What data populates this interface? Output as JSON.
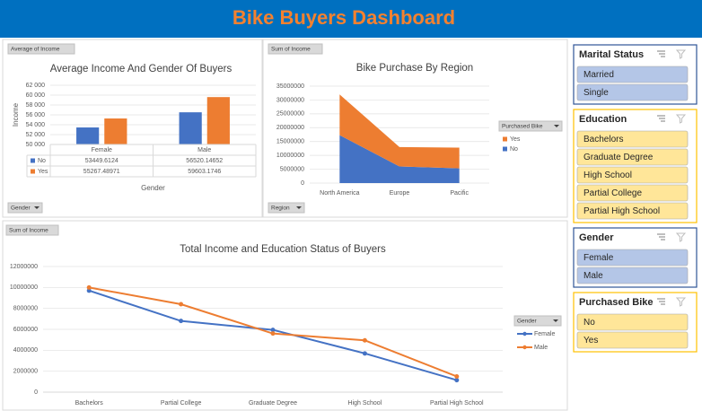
{
  "header": {
    "title": "Bike Buyers Dashboard"
  },
  "chart_data": [
    {
      "type": "bar",
      "title": "Average Income And Gender Of Buyers",
      "field_button": "Average of Income",
      "axis_button": "Gender",
      "y_label": "Income",
      "x_label": "Gender",
      "categories": [
        "Female",
        "Male"
      ],
      "series": [
        {
          "name": "No",
          "color": "#4472c4",
          "values": [
            53449.6124,
            56520.14652
          ]
        },
        {
          "name": "Yes",
          "color": "#ed7d31",
          "values": [
            55267.48971,
            59603.1746
          ]
        }
      ],
      "ylim": [
        50000,
        62000
      ],
      "yticks": [
        {
          "value": 50000,
          "label": "50 000"
        },
        {
          "value": 52000,
          "label": "52 000"
        },
        {
          "value": 54000,
          "label": "54 000"
        },
        {
          "value": 56000,
          "label": "56 000"
        },
        {
          "value": 58000,
          "label": "58 000"
        },
        {
          "value": 60000,
          "label": "60 000"
        },
        {
          "value": 62000,
          "label": "62 000"
        }
      ],
      "grid": true,
      "data_table": true
    },
    {
      "type": "area",
      "title": "Bike Purchase By Region",
      "field_button": "Sum of Income",
      "axis_button": "Region",
      "legend_title": "Purchased Bike",
      "categories": [
        "North America",
        "Europe",
        "Pacific"
      ],
      "series": [
        {
          "name": "No",
          "color": "#4472c4",
          "values": [
            17300000,
            6000000,
            5300000
          ]
        },
        {
          "name": "Yes",
          "color": "#ed7d31",
          "values": [
            14700000,
            7000000,
            7500000
          ]
        }
      ],
      "stacked": true,
      "ylim": [
        0,
        35000000
      ],
      "yticks": [
        0,
        5000000,
        10000000,
        15000000,
        20000000,
        25000000,
        30000000,
        35000000
      ],
      "grid": true
    },
    {
      "type": "line",
      "title": "Total Income and Education Status of Buyers",
      "field_button": "Sum of Income",
      "legend_title": "Gender",
      "categories": [
        "Bachelors",
        "Partial College",
        "Graduate Degree",
        "High School",
        "Partial High School"
      ],
      "series": [
        {
          "name": "Female",
          "color": "#4472c4",
          "values": [
            9700000,
            6800000,
            5950000,
            3700000,
            1150000
          ]
        },
        {
          "name": "Male",
          "color": "#ed7d31",
          "values": [
            10000000,
            8400000,
            5600000,
            4950000,
            1500000
          ]
        }
      ],
      "ylim": [
        0,
        12000000
      ],
      "yticks": [
        0,
        2000000,
        4000000,
        6000000,
        8000000,
        10000000,
        12000000
      ],
      "grid": true
    }
  ],
  "slicers": [
    {
      "title": "Marital Status",
      "color": "#b4c6e7",
      "border_color": "#2f5597",
      "items": [
        "Married",
        "Single"
      ]
    },
    {
      "title": "Education",
      "color": "#ffe699",
      "border_color": "#ffc000",
      "items": [
        "Bachelors",
        "Graduate Degree",
        "High School",
        "Partial College",
        "Partial High School"
      ]
    },
    {
      "title": "Gender",
      "color": "#b4c6e7",
      "border_color": "#2f5597",
      "items": [
        "Female",
        "Male"
      ]
    },
    {
      "title": "Purchased Bike",
      "color": "#ffe699",
      "border_color": "#ffc000",
      "items": [
        "No",
        "Yes"
      ]
    }
  ]
}
